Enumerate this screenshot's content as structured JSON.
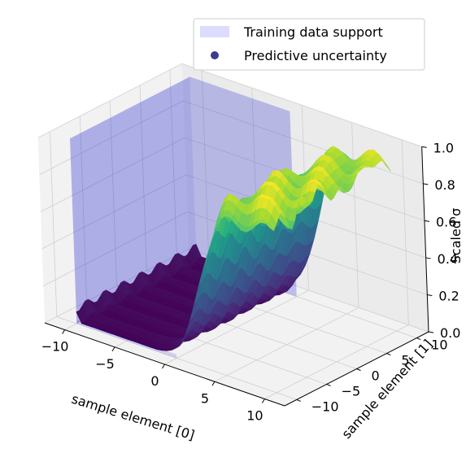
{
  "chart_data": {
    "type": "scatter",
    "subtype": "3d-surface",
    "title": "",
    "xlabel": "sample element [0]",
    "ylabel": "sample element [1]",
    "zlabel": "Scaled σ",
    "xlim": [
      -12,
      12
    ],
    "ylim": [
      -12,
      12
    ],
    "zlim": [
      0,
      1
    ],
    "x_ticks": [
      "−10",
      "−5",
      "0",
      "5",
      "10"
    ],
    "y_ticks": [
      "−10",
      "−5",
      "0",
      "5",
      "10"
    ],
    "z_ticks": [
      "0.0",
      "0.2",
      "0.4",
      "0.6",
      "0.8",
      "1.0"
    ],
    "grid": true,
    "legend_position": "top-right",
    "colormap": "viridis",
    "series": [
      {
        "name": "Training data support",
        "kind": "shaded-region",
        "color": "#0000cc",
        "x_range": [
          -10,
          0
        ],
        "y_range": [
          -10,
          10
        ],
        "z_range": [
          0,
          1
        ]
      },
      {
        "name": "Predictive uncertainty",
        "kind": "scatter-surface",
        "color": "#3b3b8f",
        "points": [
          {
            "x": -10,
            "y": 0,
            "z": 0.05
          },
          {
            "x": -5,
            "y": 0,
            "z": 0.02
          },
          {
            "x": 0,
            "y": 0,
            "z": 0.03
          },
          {
            "x": 2,
            "y": 0,
            "z": 0.45
          },
          {
            "x": 4,
            "y": 0,
            "z": 0.8
          },
          {
            "x": 7,
            "y": 0,
            "z": 0.9
          },
          {
            "x": 10,
            "y": 0,
            "z": 0.95
          }
        ]
      }
    ]
  }
}
